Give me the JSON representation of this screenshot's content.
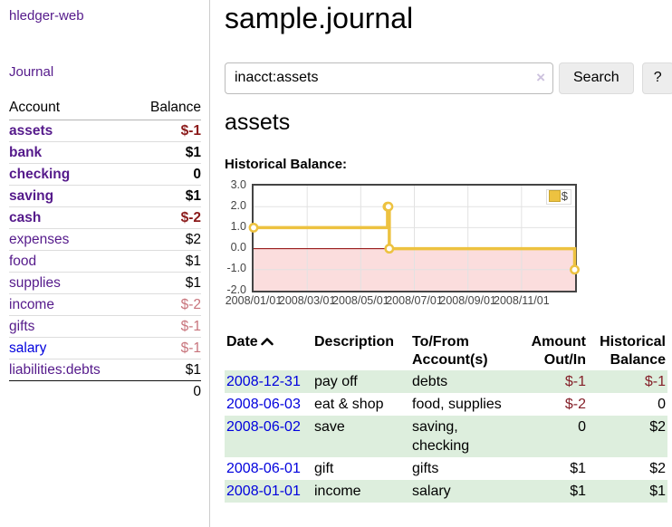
{
  "app": {
    "brand": "hledger-web",
    "nav_journal": "Journal"
  },
  "sidebar": {
    "account_header": "Account",
    "balance_header": "Balance",
    "accounts": [
      {
        "name": "assets",
        "balance": "$-1"
      },
      {
        "name": "bank",
        "balance": "$1"
      },
      {
        "name": "checking",
        "balance": "0"
      },
      {
        "name": "saving",
        "balance": "$1"
      },
      {
        "name": "cash",
        "balance": "$-2"
      },
      {
        "name": "expenses",
        "balance": "$2"
      },
      {
        "name": "food",
        "balance": "$1"
      },
      {
        "name": "supplies",
        "balance": "$1"
      },
      {
        "name": "income",
        "balance": "$-2"
      },
      {
        "name": "gifts",
        "balance": "$-1"
      },
      {
        "name": "salary",
        "balance": "$-1"
      },
      {
        "name": "liabilities:debts",
        "balance": "$1"
      }
    ],
    "total": "0"
  },
  "main": {
    "title": "sample.journal",
    "search": {
      "query": "inacct:assets",
      "clear_icon": "×",
      "search_button": "Search",
      "help_button": "?"
    },
    "account_heading": "assets",
    "section_label": "Historical Balance:"
  },
  "chart_data": {
    "type": "line",
    "step": true,
    "title": "Historical Balance",
    "series": [
      {
        "name": "$",
        "color": "#edc240",
        "points": [
          [
            "2008-01-01",
            1
          ],
          [
            "2008-06-01",
            2
          ],
          [
            "2008-06-02",
            2
          ],
          [
            "2008-06-03",
            0
          ],
          [
            "2008-12-31",
            -1
          ]
        ]
      }
    ],
    "x_range": [
      "2008-01-01",
      "2009-01-01"
    ],
    "x_tick_labels": [
      "2008/01/01",
      "2008/03/01",
      "2008/05/01",
      "2008/07/01",
      "2008/09/01",
      "2008/11/01"
    ],
    "y_ticks": [
      "3.0",
      "2.0",
      "1.0",
      "0.0",
      "-1.0",
      "-2.0"
    ],
    "ylim": [
      -2,
      3
    ],
    "legend": {
      "label": "$",
      "position": "top-right"
    },
    "colors": {
      "line": "#edc240",
      "marker_fill": "#ffffff",
      "negative_region": "#fbdddd",
      "zero_line": "#8b0000",
      "grid": "#e2e2e2",
      "border": "#444444"
    }
  },
  "register": {
    "headers": {
      "date": "Date",
      "description": "Description",
      "accounts": "To/From Account(s)",
      "amount": "Amount Out/In",
      "balance": "Historical Balance"
    },
    "rows": [
      {
        "date": "2008-12-31",
        "description": "pay off",
        "accounts": "debts",
        "amount": "$-1",
        "balance": "$-1"
      },
      {
        "date": "2008-06-03",
        "description": "eat & shop",
        "accounts": "food, supplies",
        "amount": "$-2",
        "balance": "0"
      },
      {
        "date": "2008-06-02",
        "description": "save",
        "accounts": "saving, checking",
        "amount": "0",
        "balance": "$2"
      },
      {
        "date": "2008-06-01",
        "description": "gift",
        "accounts": "gifts",
        "amount": "$1",
        "balance": "$2"
      },
      {
        "date": "2008-01-01",
        "description": "income",
        "accounts": "salary",
        "amount": "$1",
        "balance": "$1"
      }
    ]
  }
}
